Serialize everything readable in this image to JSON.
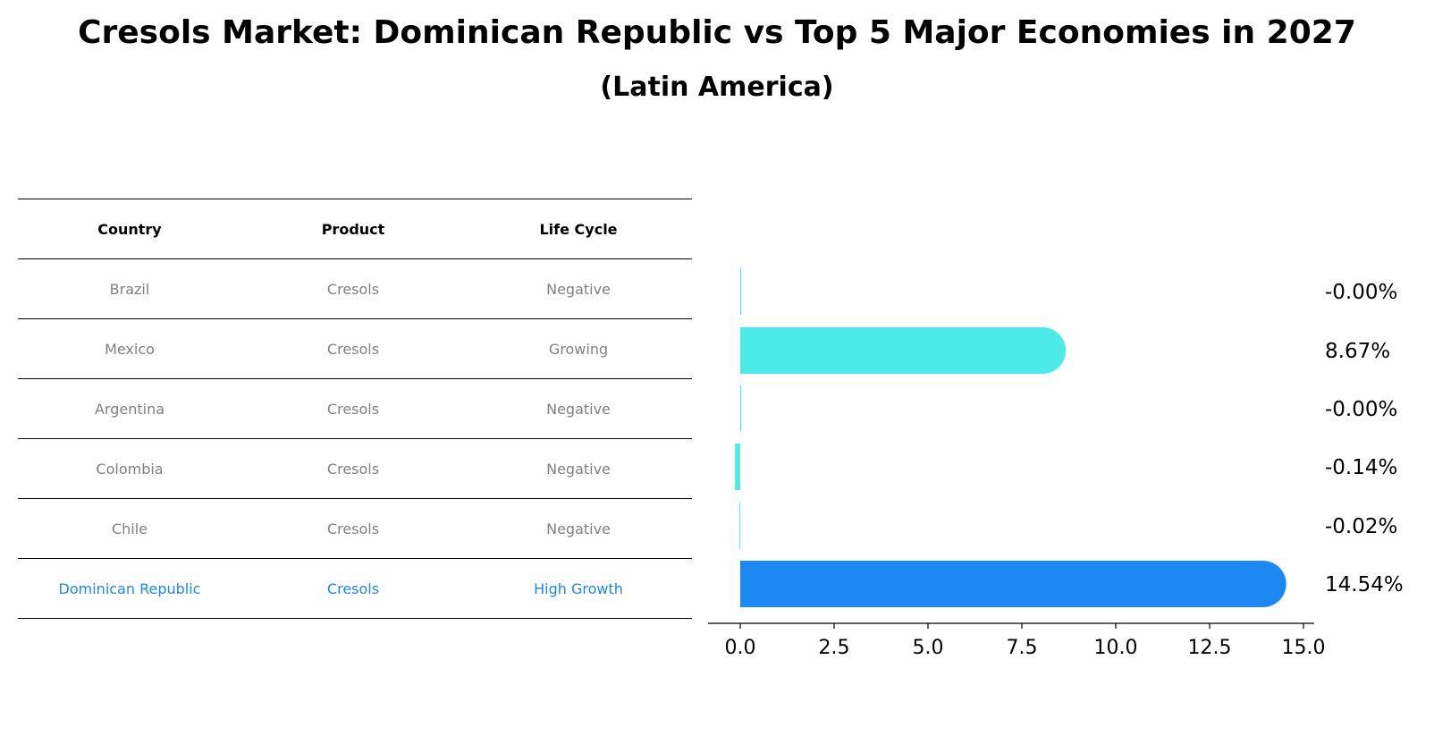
{
  "title": "Cresols Market: Dominican Republic vs Top 5 Major Economies in 2027",
  "subtitle": "(Latin America)",
  "table": {
    "headers": [
      "Country",
      "Product",
      "Life Cycle"
    ],
    "rows": [
      [
        "Brazil",
        "Cresols",
        "Negative"
      ],
      [
        "Mexico",
        "Cresols",
        "Growing"
      ],
      [
        "Argentina",
        "Cresols",
        "Negative"
      ],
      [
        "Colombia",
        "Cresols",
        "Negative"
      ],
      [
        "Chile",
        "Cresols",
        "Negative"
      ],
      [
        "Dominican Republic",
        "Cresols",
        "High Growth"
      ]
    ]
  },
  "colors": {
    "bar": "#4deaea",
    "highlight_bar": "#1e88f2",
    "highlight_text": "#1e88e5",
    "muted_text": "#808080"
  },
  "chart_data": {
    "type": "bar",
    "orientation": "horizontal",
    "categories": [
      "Brazil",
      "Mexico",
      "Argentina",
      "Colombia",
      "Chile",
      "Dominican Republic"
    ],
    "values": [
      -0.0,
      8.67,
      -0.0,
      -0.14,
      -0.02,
      14.54
    ],
    "value_labels": [
      "-0.00%",
      "8.67%",
      "-0.00%",
      "-0.14%",
      "-0.02%",
      "14.54%"
    ],
    "highlight_index": 5,
    "xlim": [
      -0.9,
      15.3
    ],
    "xticks": [
      0.0,
      2.5,
      5.0,
      7.5,
      10.0,
      12.5,
      15.0
    ],
    "xtick_labels": [
      "0.0",
      "2.5",
      "5.0",
      "7.5",
      "10.0",
      "12.5",
      "15.0"
    ],
    "xlabel": "",
    "ylabel": ""
  }
}
